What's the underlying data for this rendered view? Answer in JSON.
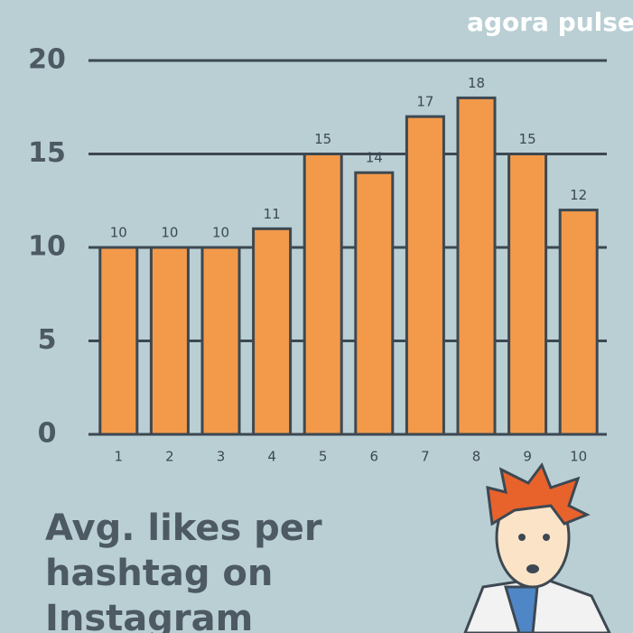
{
  "chart_data": {
    "type": "bar",
    "title": "Avg. likes per hashtag on Instagram",
    "logo": "agora pulse",
    "categories": [
      "1",
      "2",
      "3",
      "4",
      "5",
      "6",
      "7",
      "8",
      "9",
      "10"
    ],
    "values": [
      10,
      10,
      10,
      11,
      15,
      14,
      17,
      18,
      15,
      12
    ],
    "color": "#f39a4a",
    "ylim": [
      0,
      20
    ],
    "yticks": [
      0,
      5,
      10,
      15,
      20
    ],
    "grid": true
  }
}
